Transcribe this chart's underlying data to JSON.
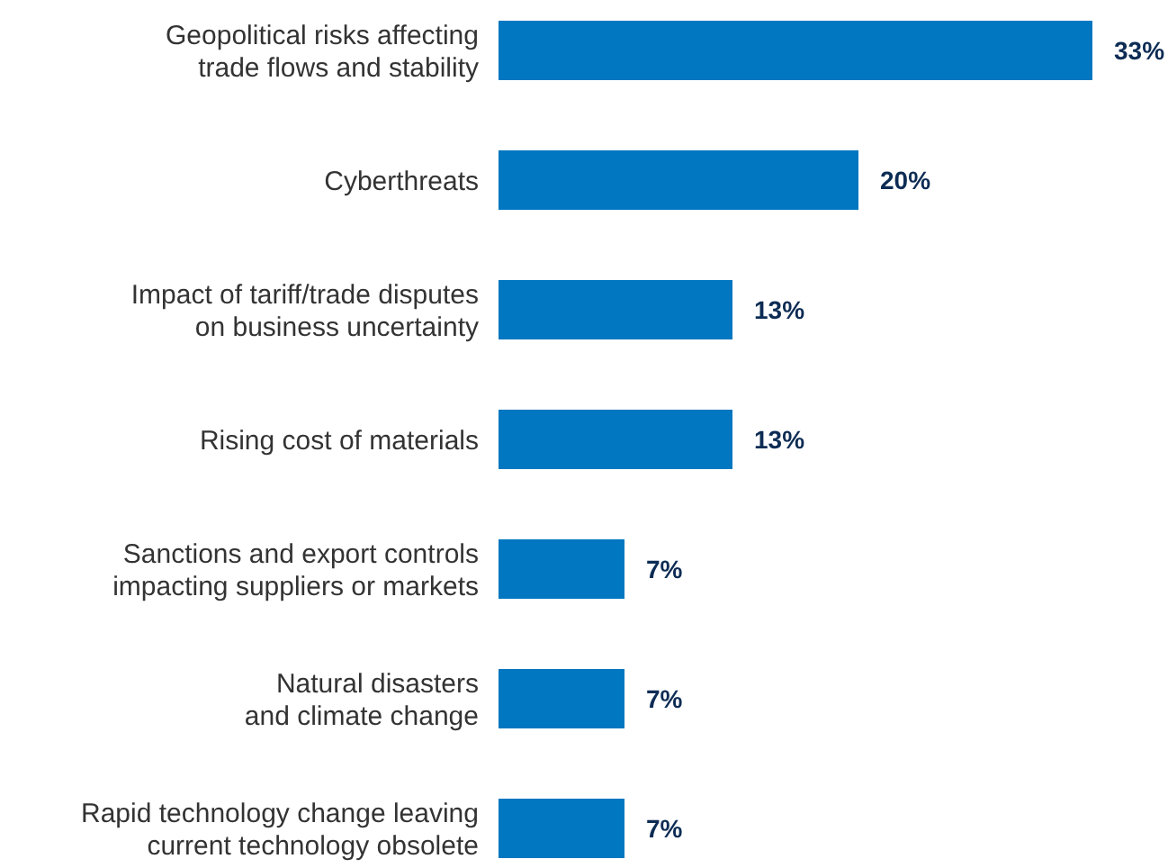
{
  "chart_data": {
    "type": "bar",
    "orientation": "horizontal",
    "categories": [
      "Geopolitical risks affecting trade flows and stability",
      "Cyberthreats",
      "Impact of tariff/trade disputes on business uncertainty",
      "Rising cost of materials",
      "Sanctions and export controls impacting suppliers or markets",
      "Natural disasters and climate change",
      "Rapid technology change leaving current technology obsolete"
    ],
    "values": [
      33,
      20,
      13,
      13,
      7,
      7,
      7
    ],
    "value_labels": [
      "33%",
      "20%",
      "13%",
      "13%",
      "7%",
      "7%",
      "7%"
    ],
    "color": "#0077c0"
  }
}
